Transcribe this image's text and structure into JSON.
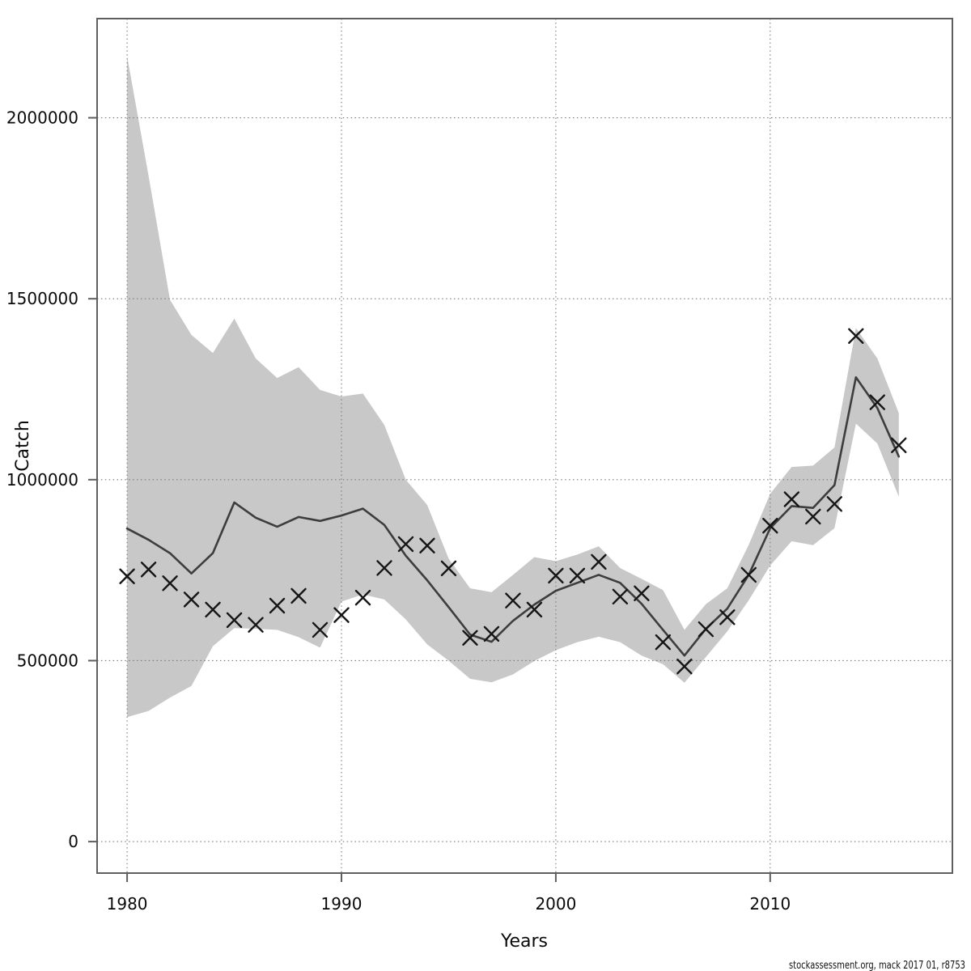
{
  "chart_data": {
    "type": "line",
    "title": "",
    "xlabel": "Years",
    "ylabel": "Catch",
    "footer": "stockassessment.org, mack  2017  01, r8753",
    "x": [
      1980,
      1981,
      1982,
      1983,
      1984,
      1985,
      1986,
      1987,
      1988,
      1989,
      1990,
      1991,
      1992,
      1993,
      1994,
      1995,
      1996,
      1997,
      1998,
      1999,
      2000,
      2001,
      2002,
      2003,
      2004,
      2005,
      2006,
      2007,
      2008,
      2009,
      2010,
      2011,
      2012,
      2013,
      2014,
      2015,
      2016
    ],
    "series": [
      {
        "name": "observed-catch",
        "style": "x-marker-scatter",
        "values": [
          733000,
          752000,
          714000,
          669000,
          641000,
          612000,
          599000,
          652000,
          679000,
          585000,
          626000,
          674000,
          756000,
          822000,
          818000,
          755000,
          563000,
          574000,
          666000,
          641000,
          735000,
          735000,
          773000,
          677000,
          686000,
          551000,
          484000,
          587000,
          620000,
          737000,
          873000,
          946000,
          898000,
          933000,
          1397000,
          1214000,
          1095000
        ]
      },
      {
        "name": "estimated-catch",
        "style": "line",
        "values": [
          865000,
          834000,
          797000,
          741000,
          797000,
          937000,
          895000,
          870000,
          897000,
          886000,
          901000,
          920000,
          875000,
          790000,
          722000,
          648000,
          572000,
          552000,
          610000,
          655000,
          693000,
          715000,
          737000,
          715000,
          657000,
          585000,
          514000,
          588000,
          644000,
          737000,
          866000,
          927000,
          922000,
          985000,
          1283000,
          1198000,
          1064000
        ]
      },
      {
        "name": "confidence-lower",
        "style": "band-edge",
        "values": [
          344000,
          361000,
          398000,
          430000,
          540000,
          590000,
          588000,
          585000,
          565000,
          536000,
          663000,
          683000,
          669000,
          614000,
          545000,
          500000,
          450000,
          440000,
          462000,
          499000,
          529000,
          551000,
          566000,
          551000,
          514000,
          490000,
          439000,
          510000,
          581000,
          667000,
          763000,
          830000,
          819000,
          866000,
          1155000,
          1100000,
          953000
        ]
      },
      {
        "name": "confidence-upper",
        "style": "band-edge",
        "values": [
          2170000,
          1840000,
          1497000,
          1400000,
          1350000,
          1445000,
          1335000,
          1281000,
          1311000,
          1248000,
          1230000,
          1238000,
          1151000,
          1000000,
          930000,
          782000,
          700000,
          689000,
          737000,
          786000,
          775000,
          793000,
          816000,
          756000,
          726000,
          695000,
          585000,
          656000,
          700000,
          820000,
          961000,
          1035000,
          1039000,
          1089000,
          1419000,
          1335000,
          1184000
        ]
      }
    ],
    "xticks": [
      1980,
      1990,
      2000,
      2010
    ],
    "yticks": [
      0,
      500000,
      1000000,
      1500000,
      2000000
    ],
    "xlim": [
      1978.6,
      2018.5
    ],
    "ylim": [
      -87000,
      2274000
    ],
    "grid": true,
    "legend": "none",
    "colors": {
      "background": "#ffffff",
      "band": "#c8c8c8",
      "line": "#3d3d3d",
      "marker": "#161616",
      "grid": "#7a7a7a",
      "axis": "#5f5f5f",
      "text": "#0a0a0a"
    }
  }
}
